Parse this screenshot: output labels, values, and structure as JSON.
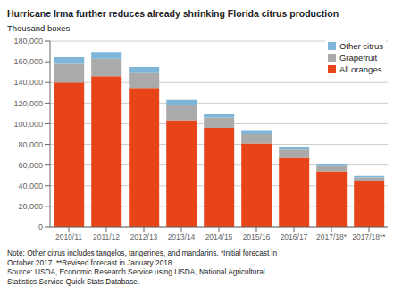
{
  "chart_data": {
    "type": "bar",
    "stacked": true,
    "title": "Hurricane Irma further reduces already shrinking Florida citrus production",
    "ylabel": "Thousand boxes",
    "note": "Note: Other citrus includes tangelos, tangerines, and mandarins. *Initial forecast in\nOctober 2017. **Revised forecast in January 2018.\nSource: USDA, Economic Research Service using USDA, National Agricultural\nStatistics Service Quick Stats Database.",
    "categories": [
      "2010/11",
      "2011/12",
      "2012/13",
      "2013/14",
      "2014/15",
      "2015/16",
      "2016/17",
      "2017/18*",
      "2017/18**"
    ],
    "series": [
      {
        "name": "All oranges",
        "color": "#E8441A",
        "values": [
          140000,
          146000,
          134000,
          103500,
          96000,
          81000,
          67000,
          54000,
          45000
        ]
      },
      {
        "name": "Grapefruit",
        "color": "#AAAAAA",
        "values": [
          18000,
          17000,
          15000,
          15000,
          10000,
          9000,
          8000,
          5000,
          3000
        ]
      },
      {
        "name": "Other citrus",
        "color": "#7EB6D9",
        "values": [
          6500,
          6500,
          6000,
          4500,
          3500,
          3000,
          2500,
          2000,
          1500
        ]
      }
    ],
    "ylim": [
      0,
      180000
    ],
    "yticks": [
      0,
      {
        "value": 20000,
        "label": "20,000"
      },
      {
        "value": 40000,
        "label": "40,000"
      },
      {
        "value": 60000,
        "label": "60,000"
      },
      {
        "value": 80000,
        "label": "80,000"
      },
      {
        "value": 100000,
        "label": "100,000"
      },
      {
        "value": 120000,
        "label": "120,000"
      },
      {
        "value": 140000,
        "label": "140,000"
      },
      {
        "value": 160000,
        "label": "160,000"
      },
      {
        "value": 180000,
        "label": "180,000"
      }
    ],
    "grid": true,
    "legend": "upper right"
  }
}
